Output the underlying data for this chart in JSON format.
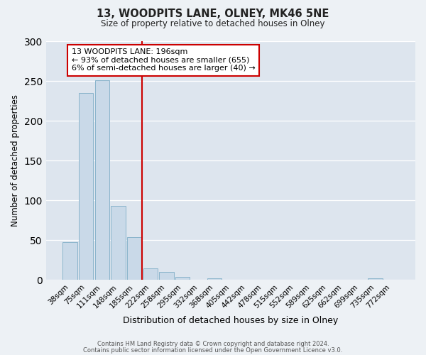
{
  "title1": "13, WOODPITS LANE, OLNEY, MK46 5NE",
  "title2": "Size of property relative to detached houses in Olney",
  "xlabel": "Distribution of detached houses by size in Olney",
  "ylabel": "Number of detached properties",
  "bar_labels": [
    "38sqm",
    "75sqm",
    "111sqm",
    "148sqm",
    "185sqm",
    "222sqm",
    "258sqm",
    "295sqm",
    "332sqm",
    "368sqm",
    "405sqm",
    "442sqm",
    "478sqm",
    "515sqm",
    "552sqm",
    "589sqm",
    "625sqm",
    "662sqm",
    "699sqm",
    "735sqm",
    "772sqm"
  ],
  "bar_values": [
    48,
    235,
    251,
    93,
    54,
    15,
    10,
    4,
    0,
    2,
    0,
    0,
    0,
    0,
    0,
    0,
    0,
    0,
    0,
    2,
    0
  ],
  "bar_color": "#c9d9e8",
  "bar_edgecolor": "#8ab4cc",
  "vline_color": "#cc0000",
  "annotation_title": "13 WOODPITS LANE: 196sqm",
  "annotation_line1": "← 93% of detached houses are smaller (655)",
  "annotation_line2": "6% of semi-detached houses are larger (40) →",
  "annotation_box_edgecolor": "#cc0000",
  "ylim": [
    0,
    300
  ],
  "yticks": [
    0,
    50,
    100,
    150,
    200,
    250,
    300
  ],
  "footer1": "Contains HM Land Registry data © Crown copyright and database right 2024.",
  "footer2": "Contains public sector information licensed under the Open Government Licence v3.0.",
  "bg_color": "#edf1f5",
  "plot_bg_color": "#dde5ee"
}
